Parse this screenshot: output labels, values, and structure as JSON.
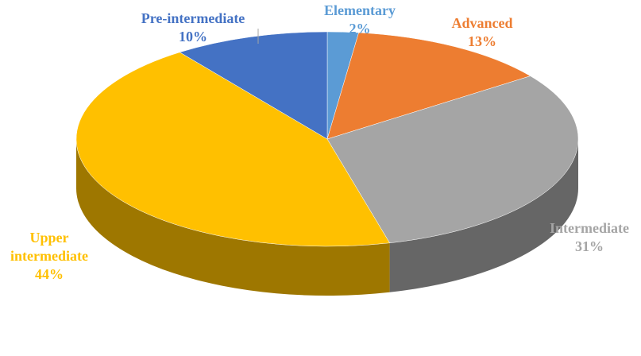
{
  "chart_data": {
    "type": "pie",
    "categories": [
      "Elementary",
      "Advanced",
      "Intermediate",
      "Upper intermediate",
      "Pre-intermediate"
    ],
    "values": [
      2,
      13,
      31,
      44,
      10
    ],
    "value_labels": [
      "2%",
      "13%",
      "31%",
      "44%",
      "10%"
    ],
    "colors": [
      "#5b9bd5",
      "#ed7d31",
      "#a5a5a5",
      "#ffc000",
      "#4472c4"
    ]
  }
}
